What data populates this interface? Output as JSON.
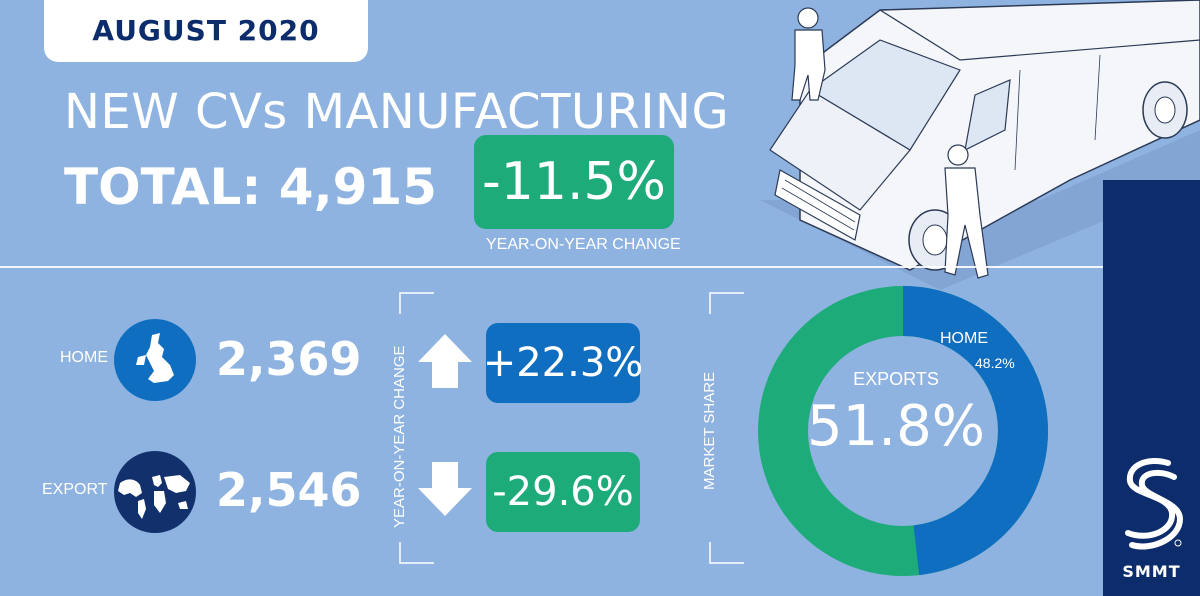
{
  "header": {
    "month": "AUGUST 2020",
    "title": "NEW CVs MANUFACTURING",
    "total_text": "TOTAL: 4,915",
    "total_change": "-11.5%",
    "total_change_label": "YEAR-ON-YEAR CHANGE"
  },
  "rows": [
    {
      "label": "HOME",
      "value": "2,369",
      "change": "+22.3%",
      "direction": "up",
      "icon": "uk-map-icon"
    },
    {
      "label": "EXPORT",
      "value": "2,546",
      "change": "-29.6%",
      "direction": "down",
      "icon": "world-globe-icon"
    }
  ],
  "yoy_vertical_label": "YEAR-ON-YEAR CHANGE",
  "market_share": {
    "vertical_label": "MARKET SHARE",
    "center_label": "EXPORTS",
    "center_value": "51.8%",
    "home_label": "HOME",
    "home_value": "48.2%",
    "home_share": 48.2,
    "export_share": 51.8
  },
  "brand": {
    "name": "SMMT"
  },
  "colors": {
    "background": "#8fb3e0",
    "green": "#1eab7a",
    "blue": "#0f6ec0",
    "navy": "#0d2c6b"
  },
  "illustration": "van-with-mechanics-illustration"
}
